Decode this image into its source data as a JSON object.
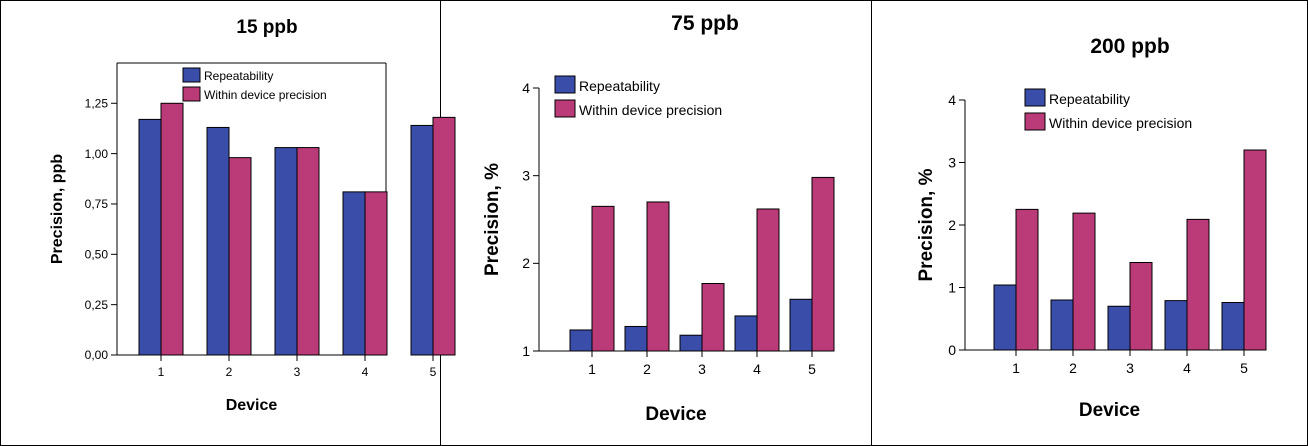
{
  "colors": {
    "repeatability": "#3a4da8",
    "within_device": "#bb3a78",
    "border": "#000000"
  },
  "chart_data": [
    {
      "type": "bar",
      "title": "15 ppb",
      "xlabel": "Device",
      "ylabel": "Precision, ppb",
      "categories": [
        "1",
        "2",
        "3",
        "4",
        "5"
      ],
      "ylim": [
        0,
        1.45
      ],
      "y_ticks": [
        "0,00",
        "0,25",
        "0,50",
        "0,75",
        "1,00",
        "1,25"
      ],
      "y_tick_values": [
        0,
        0.25,
        0.5,
        0.75,
        1.0,
        1.25
      ],
      "legend_position": "top",
      "series": [
        {
          "name": "Repeatability",
          "values": [
            1.17,
            1.13,
            1.03,
            0.81,
            1.14
          ]
        },
        {
          "name": "Within device precision",
          "values": [
            1.25,
            0.98,
            1.03,
            0.81,
            1.18
          ]
        }
      ]
    },
    {
      "type": "bar",
      "title": "75 ppb",
      "xlabel": "Device",
      "ylabel": "Precision, %",
      "categories": [
        "1",
        "2",
        "3",
        "4",
        "5"
      ],
      "ylim": [
        1,
        4
      ],
      "y_ticks": [
        "1",
        "2",
        "3",
        "4"
      ],
      "y_tick_values": [
        1,
        2,
        3,
        4
      ],
      "legend_position": "top",
      "series": [
        {
          "name": "Repeatability",
          "values": [
            1.24,
            1.28,
            1.18,
            1.4,
            1.59
          ]
        },
        {
          "name": "Within device precision",
          "values": [
            2.65,
            2.7,
            1.77,
            2.62,
            2.98
          ]
        }
      ]
    },
    {
      "type": "bar",
      "title": "200 ppb",
      "xlabel": "Device",
      "ylabel": "Precision, %",
      "categories": [
        "1",
        "2",
        "3",
        "4",
        "5"
      ],
      "ylim": [
        0,
        4
      ],
      "y_ticks": [
        "0",
        "1",
        "2",
        "3",
        "4"
      ],
      "y_tick_values": [
        0,
        1,
        2,
        3,
        4
      ],
      "legend_position": "top",
      "series": [
        {
          "name": "Repeatability",
          "values": [
            1.04,
            0.8,
            0.7,
            0.79,
            0.76
          ]
        },
        {
          "name": "Within device precision",
          "values": [
            2.25,
            2.19,
            1.4,
            2.09,
            3.2
          ]
        }
      ]
    }
  ]
}
